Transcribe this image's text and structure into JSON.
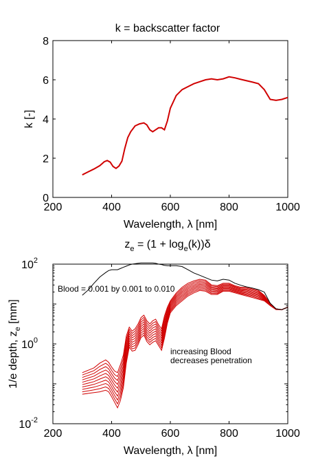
{
  "chart_data": [
    {
      "type": "line",
      "title": "k = backscatter factor",
      "xlabel": "Wavelength, λ [nm]",
      "ylabel": "k [-]",
      "xlim": [
        200,
        1000
      ],
      "ylim": [
        0,
        8
      ],
      "xticks": [
        "200",
        "400",
        "600",
        "800",
        "1000"
      ],
      "yticks": [
        "0",
        "2",
        "4",
        "6",
        "8"
      ],
      "grid": false,
      "line_color": "#d00000",
      "series": [
        {
          "x": [
            300,
            320,
            340,
            360,
            375,
            385,
            395,
            405,
            415,
            425,
            435,
            445,
            455,
            465,
            480,
            495,
            510,
            520,
            530,
            540,
            550,
            560,
            570,
            580,
            590,
            600,
            620,
            640,
            660,
            680,
            700,
            720,
            740,
            760,
            780,
            800,
            820,
            840,
            860,
            880,
            900,
            920,
            940,
            960,
            980,
            1000
          ],
          "values": [
            1.15,
            1.3,
            1.45,
            1.62,
            1.82,
            1.88,
            1.8,
            1.58,
            1.48,
            1.6,
            1.85,
            2.5,
            3.05,
            3.35,
            3.65,
            3.75,
            3.8,
            3.7,
            3.45,
            3.35,
            3.45,
            3.55,
            3.55,
            3.45,
            3.9,
            4.55,
            5.2,
            5.5,
            5.65,
            5.8,
            5.9,
            6.0,
            6.05,
            6.0,
            6.05,
            6.15,
            6.1,
            6.02,
            5.95,
            5.88,
            5.8,
            5.5,
            5.0,
            4.95,
            5.0,
            5.1
          ]
        }
      ]
    },
    {
      "type": "line",
      "title_main": "z",
      "title_sub": "e",
      "title_mid": " = (1 + log",
      "title_sub2": "e",
      "title_end": "(k))δ",
      "xlabel": "Wavelength, λ [nm]",
      "ylabel_main": "1/e depth, z",
      "ylabel_sub": "e",
      "ylabel_unit": " [mm]",
      "xlim": [
        200,
        1000
      ],
      "ylim": [
        0.01,
        100
      ],
      "yscale": "log",
      "xticks": [
        "200",
        "400",
        "600",
        "800",
        "1000"
      ],
      "ytick_base": "10",
      "ytick_exps": [
        "-2",
        "0",
        "2"
      ],
      "grid": false,
      "annotations": [
        "Blood = 0.001 by 0.001 to 0.010",
        "increasing Blood",
        "decreases penetration"
      ],
      "x": [
        300,
        320,
        340,
        360,
        380,
        390,
        400,
        410,
        420,
        430,
        440,
        450,
        460,
        470,
        480,
        490,
        500,
        510,
        520,
        530,
        540,
        550,
        560,
        570,
        580,
        590,
        600,
        620,
        640,
        660,
        680,
        700,
        720,
        740,
        760,
        780,
        800,
        820,
        840,
        860,
        880,
        900,
        920,
        940,
        960,
        980,
        1000
      ],
      "series_base_log10": [
        1.22,
        1.35,
        1.52,
        1.68,
        1.79,
        1.84,
        1.86,
        1.86,
        1.86,
        1.89,
        1.92,
        1.95,
        1.98,
        2.0,
        2.01,
        2.02,
        2.03,
        2.03,
        2.03,
        2.03,
        2.03,
        2.02,
        2.0,
        1.99,
        1.97,
        1.96,
        1.96,
        1.96,
        1.94,
        1.86,
        1.78,
        1.72,
        1.66,
        1.6,
        1.58,
        1.62,
        1.6,
        1.52,
        1.47,
        1.43,
        1.4,
        1.36,
        1.3,
        1.02,
        0.88,
        0.86,
        0.92
      ],
      "series_red_top_log10": [
        -0.72,
        -0.66,
        -0.6,
        -0.48,
        -0.4,
        -0.46,
        -0.58,
        -0.68,
        -0.72,
        -0.52,
        -0.28,
        0.2,
        0.42,
        0.32,
        0.38,
        0.5,
        0.66,
        0.72,
        0.58,
        0.5,
        0.58,
        0.62,
        0.48,
        0.38,
        0.7,
        0.92,
        1.08,
        1.28,
        1.42,
        1.52,
        1.58,
        1.62,
        1.6,
        1.48,
        1.46,
        1.52,
        1.52,
        1.46,
        1.42,
        1.42,
        1.38,
        1.34,
        1.22,
        1.02,
        0.88,
        0.86,
        0.92
      ],
      "series_red_bottom_log10": [
        -1.26,
        -1.24,
        -1.22,
        -1.2,
        -1.16,
        -1.2,
        -1.32,
        -1.46,
        -1.6,
        -1.42,
        -1.1,
        -0.48,
        -0.08,
        -0.18,
        -0.16,
        -0.02,
        0.16,
        0.22,
        0.06,
        -0.02,
        0.04,
        0.08,
        -0.04,
        -0.16,
        0.14,
        0.52,
        0.78,
        0.96,
        1.08,
        1.2,
        1.28,
        1.34,
        1.32,
        1.24,
        1.24,
        1.32,
        1.32,
        1.28,
        1.24,
        1.2,
        1.16,
        1.12,
        1.08,
        0.96,
        0.86,
        0.86,
        0.92
      ],
      "n_red_series": 10,
      "colors": {
        "base": "#000000",
        "red": "#d00000"
      }
    }
  ]
}
